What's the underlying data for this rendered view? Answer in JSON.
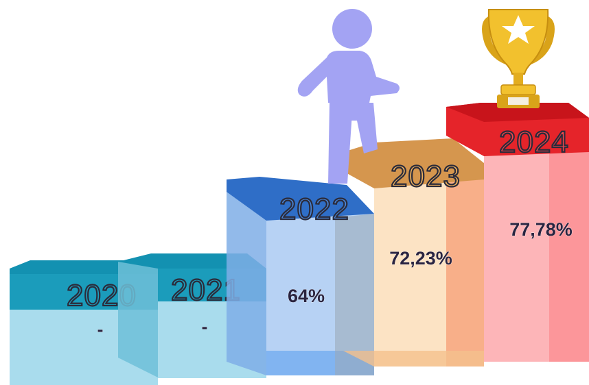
{
  "steps": [
    {
      "year": "2020",
      "value": "-",
      "top_color": "#1b9cbb",
      "front_color": "#a9dced",
      "label_fill": "#1fa0be"
    },
    {
      "year": "2021",
      "value": "-",
      "top_color": "#1b9cbb",
      "front_color": "#a9dced",
      "label_fill": "#1fa0be"
    },
    {
      "year": "2022",
      "value": "64%",
      "top_color": "#3a72c8",
      "front_color": "#b7d2f4",
      "label_fill": "#4a86d8"
    },
    {
      "year": "2023",
      "value": "72,23%",
      "top_color": "#e3a65a",
      "front_color": "#fce3c4",
      "label_fill": "#f0b25e"
    },
    {
      "year": "2024",
      "value": "77,78%",
      "top_color": "#e5242a",
      "front_color": "#fdb5b8",
      "label_fill": "#f0474d"
    }
  ],
  "icons": {
    "person": {
      "name": "person-climbing-icon",
      "color": "#a3a3f3"
    },
    "trophy": {
      "name": "trophy-icon",
      "color": "#f2c12e"
    }
  }
}
